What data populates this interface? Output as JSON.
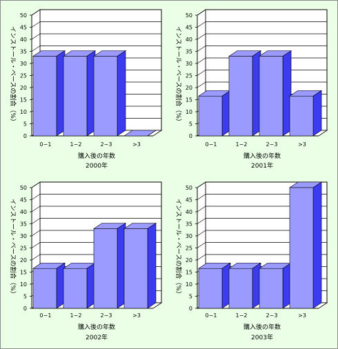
{
  "chart_data": [
    {
      "type": "bar",
      "title": "2000年",
      "xlabel": "購入後の年数",
      "ylabel": "インストール・ベースの割合（%）",
      "categories": [
        "0−1",
        "1−2",
        "2−3",
        ">3"
      ],
      "values": [
        33,
        33,
        33,
        0
      ],
      "ylim": [
        0,
        50
      ],
      "yticks": [
        0,
        5,
        10,
        15,
        20,
        25,
        30,
        35,
        40,
        45,
        50
      ],
      "grid": true,
      "bar_color": "#9b9bff",
      "side_color": "#3b3bf0"
    },
    {
      "type": "bar",
      "title": "2001年",
      "xlabel": "購入後の年数",
      "ylabel": "インストール・ベースの割合（%）",
      "categories": [
        "0−1",
        "1−2",
        "2−3",
        ">3"
      ],
      "values": [
        16.5,
        33,
        33,
        16.5
      ],
      "ylim": [
        0,
        50
      ],
      "yticks": [
        0,
        5,
        10,
        15,
        20,
        25,
        30,
        35,
        40,
        45,
        50
      ],
      "grid": true,
      "bar_color": "#9b9bff",
      "side_color": "#3b3bf0"
    },
    {
      "type": "bar",
      "title": "2002年",
      "xlabel": "購入後の年数",
      "ylabel": "インストール・ベースの割合（%）",
      "categories": [
        "0−1",
        "1−2",
        "2−3",
        ">3"
      ],
      "values": [
        16.5,
        16.5,
        33,
        33
      ],
      "ylim": [
        0,
        50
      ],
      "yticks": [
        0,
        5,
        10,
        15,
        20,
        25,
        30,
        35,
        40,
        45,
        50
      ],
      "grid": true,
      "bar_color": "#9b9bff",
      "side_color": "#3b3bf0"
    },
    {
      "type": "bar",
      "title": "2003年",
      "xlabel": "購入後の年数",
      "ylabel": "インストール・ベースの割合（%）",
      "categories": [
        "0−1",
        "1−2",
        "2−3",
        ">3"
      ],
      "values": [
        16.5,
        16.5,
        16.5,
        50
      ],
      "ylim": [
        0,
        50
      ],
      "yticks": [
        0,
        5,
        10,
        15,
        20,
        25,
        30,
        35,
        40,
        45,
        50
      ],
      "grid": true,
      "bar_color": "#9b9bff",
      "side_color": "#3b3bf0"
    }
  ]
}
